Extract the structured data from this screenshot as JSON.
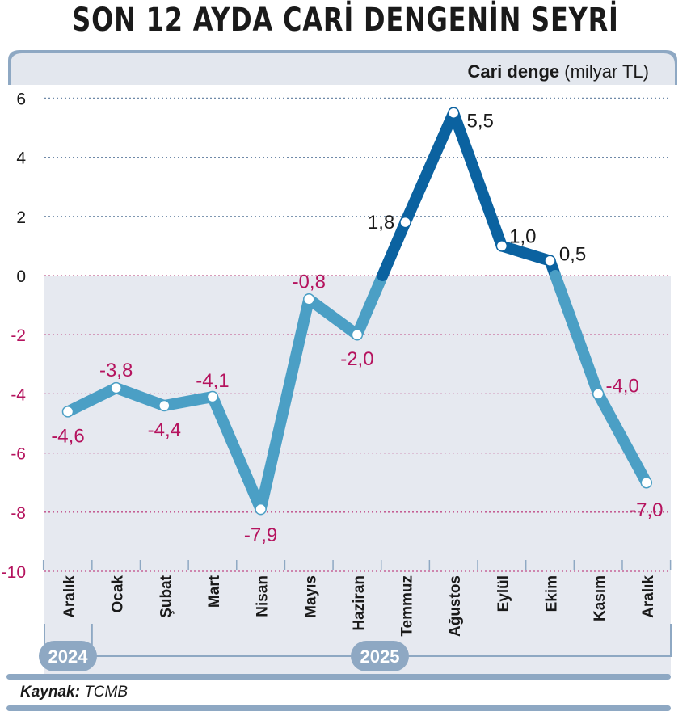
{
  "title": "SON 12 AYDA CARİ DENGENİN SEYRİ",
  "source": {
    "label": "Kaynak:",
    "value": "TCMB"
  },
  "chart_data": {
    "type": "line",
    "title": "SON 12 AYDA CARİ DENGENİN SEYRİ",
    "ylabel_bold": "Cari denge",
    "ylabel_unit": "(milyar TL)",
    "categories": [
      "Aralık",
      "Ocak",
      "Şubat",
      "Mart",
      "Nisan",
      "Mayıs",
      "Haziran",
      "Temmuz",
      "Ağustos",
      "Eylül",
      "Ekim",
      "Kasım",
      "Aralık"
    ],
    "values": [
      -4.6,
      -3.8,
      -4.4,
      -4.1,
      -7.9,
      -0.8,
      -2.0,
      1.8,
      5.5,
      1.0,
      0.5,
      -4.0,
      -7.0
    ],
    "data_labels": [
      "-4,6",
      "-3,8",
      "-4,4",
      "-4,1",
      "-7,9",
      "-0,8",
      "-2,0",
      "1,8",
      "5,5",
      "1,0",
      "0,5",
      "-4,0",
      "-7,0"
    ],
    "year_groups": [
      {
        "label": "2024",
        "from": 0,
        "to": 0
      },
      {
        "label": "2025",
        "from": 1,
        "to": 12
      }
    ],
    "ylim": [
      -10,
      6
    ],
    "yticks": [
      6,
      4,
      2,
      0,
      -2,
      -4,
      -6,
      -8,
      -10
    ],
    "grid": true,
    "colors": {
      "positive_line": "#0b62a0",
      "negative_line": "#4b9fc5",
      "positive_text": "#1a1a1a",
      "negative_text": "#b5135e",
      "negative_bg": "#e6e9f0",
      "header_bg": "#e3e7ee",
      "accent": "#8ea8c3"
    }
  }
}
